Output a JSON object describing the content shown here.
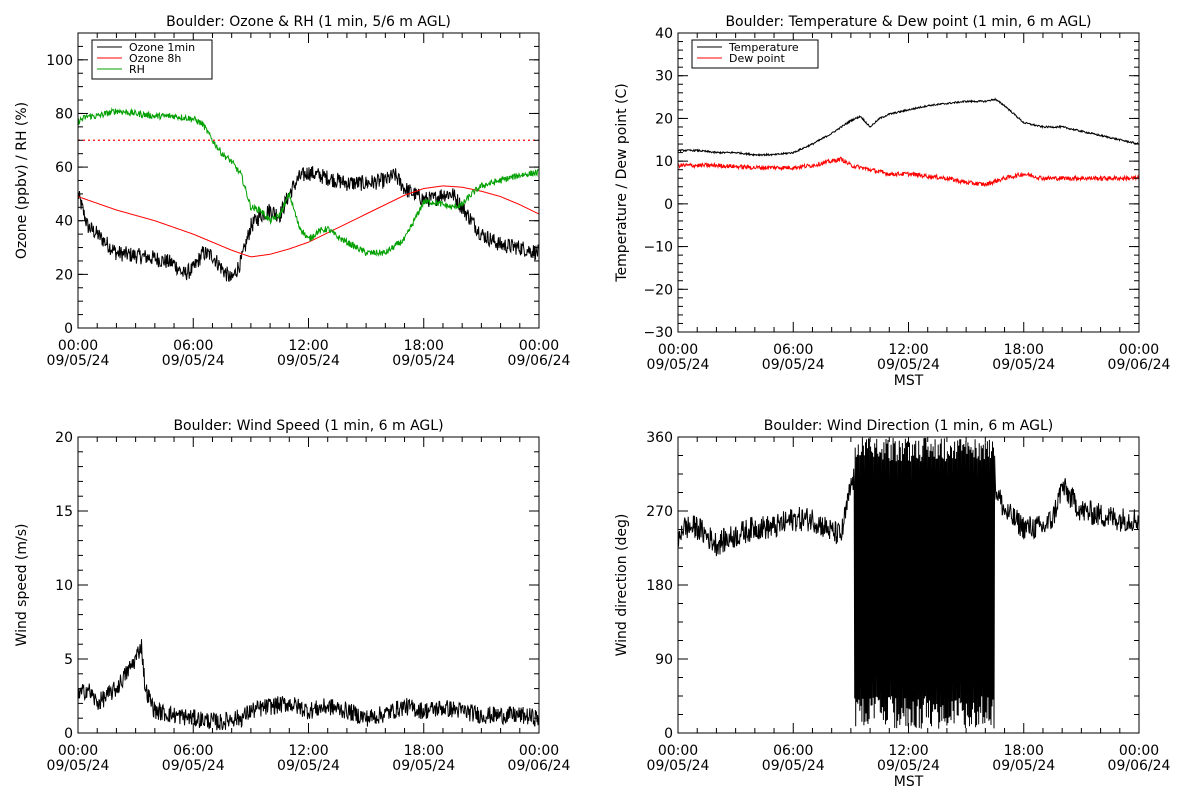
{
  "chart_data": [
    {
      "type": "line",
      "title": "Boulder: Ozone & RH (1 min, 5/6 m AGL)",
      "ylabel": "Ozone (ppbv) / RH (%)",
      "xlabel": "",
      "ylim": [
        0,
        110
      ],
      "yticks": [
        "0",
        "20",
        "40",
        "60",
        "80",
        "100"
      ],
      "ytick_values": [
        0,
        20,
        40,
        60,
        80,
        100
      ],
      "xticks": [
        [
          "00:00",
          "09/05/24"
        ],
        [
          "06:00",
          "09/05/24"
        ],
        [
          "12:00",
          "09/05/24"
        ],
        [
          "18:00",
          "09/05/24"
        ],
        [
          "00:00",
          "09/06/24"
        ]
      ],
      "legend_position": "top-left",
      "reference_line": {
        "y": 70,
        "style": "dotted",
        "color": "#ff0000"
      },
      "series": [
        {
          "name": "Ozone 1min",
          "color": "#000000",
          "noise": 3,
          "x": [
            0,
            0.5,
            1,
            2,
            3,
            4,
            5,
            5.5,
            6,
            6.5,
            7,
            7.5,
            8,
            8.5,
            9,
            9.5,
            10,
            10.5,
            11,
            11.5,
            12,
            13,
            14,
            15,
            16,
            16.5,
            17,
            17.5,
            18,
            18.5,
            19,
            19.5,
            20,
            20.5,
            21,
            22,
            23,
            24
          ],
          "y": [
            50,
            38,
            35,
            28,
            27,
            26,
            24,
            20,
            22,
            28,
            27,
            22,
            18,
            25,
            38,
            42,
            44,
            42,
            50,
            56,
            58,
            56,
            54,
            54,
            55,
            57,
            52,
            50,
            48,
            48,
            50,
            50,
            45,
            40,
            35,
            31,
            30,
            28
          ]
        },
        {
          "name": "Ozone 8h",
          "color": "#ff0000",
          "noise": 0,
          "x": [
            0,
            2,
            4,
            6,
            8,
            9,
            10,
            11,
            12,
            14,
            16,
            17,
            18,
            19,
            20,
            21,
            22,
            23,
            24
          ],
          "y": [
            49,
            44,
            40,
            35,
            29,
            26.5,
            27.5,
            29.5,
            32,
            39,
            46,
            49.5,
            52,
            53,
            52.5,
            51,
            49,
            46,
            42.5
          ]
        },
        {
          "name": "RH",
          "color": "#00a000",
          "noise": 1.2,
          "x": [
            0,
            0.5,
            1,
            2,
            3,
            4,
            5,
            6,
            6.5,
            7,
            7.5,
            8,
            8.5,
            9,
            9.5,
            10,
            10.5,
            11,
            11.5,
            12,
            12.5,
            13,
            13.5,
            14,
            15,
            16,
            17,
            17.5,
            18,
            18.5,
            19,
            19.5,
            20,
            20.5,
            21,
            22,
            23,
            24
          ],
          "y": [
            77,
            79,
            79,
            81,
            80,
            79,
            79,
            78,
            76,
            70,
            65,
            62,
            57,
            45,
            44,
            40,
            42,
            50,
            38,
            33,
            36,
            37,
            34,
            32,
            28,
            28,
            33,
            40,
            47,
            47,
            46,
            45,
            46,
            50,
            53,
            55,
            57,
            58
          ]
        }
      ]
    },
    {
      "type": "line",
      "title": "Boulder: Temperature & Dew point (1 min, 6 m AGL)",
      "ylabel": "Temperature / Dew point (C)",
      "xlabel": "MST",
      "ylim": [
        -30,
        40
      ],
      "yticks": [
        "−30",
        "−20",
        "−10",
        "0",
        "10",
        "20",
        "30",
        "40"
      ],
      "ytick_values": [
        -30,
        -20,
        -10,
        0,
        10,
        20,
        30,
        40
      ],
      "xticks": [
        [
          "00:00",
          "09/05/24"
        ],
        [
          "06:00",
          "09/05/24"
        ],
        [
          "12:00",
          "09/05/24"
        ],
        [
          "18:00",
          "09/05/24"
        ],
        [
          "00:00",
          "09/06/24"
        ]
      ],
      "legend_position": "top-left",
      "series": [
        {
          "name": "Temperature",
          "color": "#000000",
          "noise": 0.2,
          "x": [
            0,
            1,
            2,
            3,
            4,
            5,
            6,
            7,
            8,
            9,
            9.5,
            10,
            10.5,
            11,
            12,
            13,
            14,
            15,
            16,
            16.5,
            17,
            18,
            19,
            20,
            21,
            22,
            23,
            24
          ],
          "y": [
            12.5,
            12.5,
            12,
            12,
            11.5,
            11.5,
            12,
            14,
            16.5,
            19.5,
            20.5,
            18,
            20,
            21,
            22,
            23,
            23.5,
            24,
            24,
            24.5,
            23,
            19,
            18,
            18,
            17,
            16,
            15,
            14
          ]
        },
        {
          "name": "Dew point",
          "color": "#ff0000",
          "noise": 0.5,
          "x": [
            0,
            2,
            4,
            6,
            7,
            8,
            8.5,
            9,
            10,
            11,
            12,
            13,
            14,
            15,
            16,
            17,
            18,
            19,
            20,
            21,
            22,
            23,
            24
          ],
          "y": [
            9,
            9,
            8.5,
            8.5,
            9,
            10,
            10.5,
            9,
            8,
            7,
            7,
            6.5,
            6,
            5,
            4.5,
            6,
            7,
            6,
            6,
            6,
            6,
            6,
            6
          ]
        }
      ]
    },
    {
      "type": "line",
      "title": "Boulder: Wind Speed (1 min, 6 m AGL)",
      "ylabel": "Wind speed (m/s)",
      "xlabel": "",
      "ylim": [
        0,
        20
      ],
      "yticks": [
        "0",
        "5",
        "10",
        "15",
        "20"
      ],
      "ytick_values": [
        0,
        5,
        10,
        15,
        20
      ],
      "xticks": [
        [
          "00:00",
          "09/05/24"
        ],
        [
          "06:00",
          "09/05/24"
        ],
        [
          "12:00",
          "09/05/24"
        ],
        [
          "18:00",
          "09/05/24"
        ],
        [
          "00:00",
          "09/06/24"
        ]
      ],
      "legend_position": "none",
      "series": [
        {
          "name": "",
          "color": "#000000",
          "noise": 0.6,
          "x": [
            0,
            0.5,
            1,
            1.5,
            2,
            2.5,
            3,
            3.3,
            3.5,
            4,
            5,
            6,
            7,
            7.5,
            8,
            8.5,
            9,
            10,
            11,
            12,
            13,
            14,
            15,
            16,
            17,
            18,
            19,
            20,
            21,
            22,
            23,
            24
          ],
          "y": [
            2.5,
            3,
            2,
            2.5,
            3,
            4,
            5,
            6,
            3,
            1.5,
            1.2,
            1,
            0.8,
            0.7,
            1,
            1,
            1.5,
            1.8,
            2,
            1.5,
            1.8,
            1.5,
            1,
            1.3,
            1.8,
            1.5,
            1.7,
            1.5,
            1.2,
            1.2,
            1.2,
            1
          ]
        }
      ]
    },
    {
      "type": "line",
      "title": "Boulder: Wind Direction (1 min, 6 m AGL)",
      "ylabel": "Wind direction (deg)",
      "xlabel": "MST",
      "ylim": [
        0,
        360
      ],
      "yticks": [
        "0",
        "90",
        "180",
        "270",
        "360"
      ],
      "ytick_values": [
        0,
        90,
        180,
        270,
        360
      ],
      "xticks": [
        [
          "00:00",
          "09/05/24"
        ],
        [
          "06:00",
          "09/05/24"
        ],
        [
          "12:00",
          "09/05/24"
        ],
        [
          "18:00",
          "09/05/24"
        ],
        [
          "00:00",
          "09/06/24"
        ]
      ],
      "legend_position": "none",
      "series": [
        {
          "name": "",
          "color": "#000000",
          "noise": 15,
          "wrap_range": [
            9.2,
            16.5
          ],
          "x": [
            0,
            0.2,
            1,
            2,
            3,
            4,
            5,
            6,
            7,
            8,
            8.5,
            9,
            9.5,
            16.5,
            17,
            18,
            19,
            19.5,
            20,
            20.5,
            21,
            22,
            23,
            24
          ],
          "y": [
            230,
            250,
            250,
            230,
            240,
            250,
            250,
            260,
            260,
            245,
            240,
            300,
            330,
            300,
            270,
            250,
            250,
            260,
            300,
            285,
            270,
            265,
            260,
            260
          ]
        }
      ]
    }
  ]
}
